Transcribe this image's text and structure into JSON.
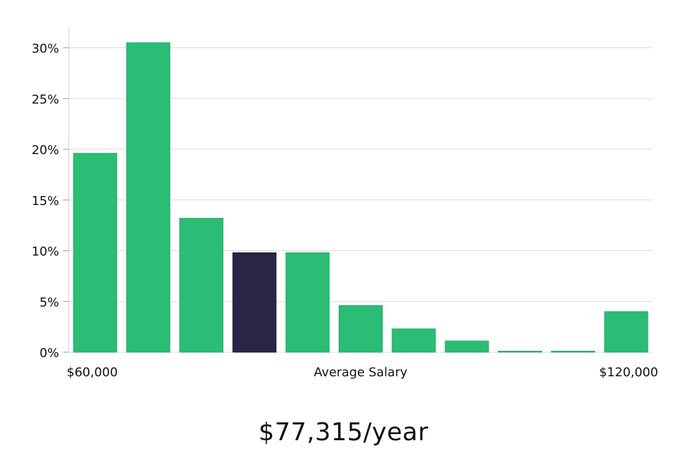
{
  "chart_data": {
    "type": "bar",
    "ylabel": "",
    "xlabel": "Average Salary",
    "ylim": [
      0,
      32
    ],
    "yticks": [
      0,
      5,
      10,
      15,
      20,
      25,
      30
    ],
    "ytick_labels": [
      "0%",
      "5%",
      "10%",
      "15%",
      "20%",
      "25%",
      "30%"
    ],
    "x_edge_labels": {
      "min": "$60,000",
      "max": "$120,000"
    },
    "values": [
      19.6,
      30.5,
      13.2,
      9.8,
      9.8,
      4.6,
      2.3,
      1.1,
      0.1,
      0.1,
      4.0
    ],
    "highlight_index": 3,
    "grid": true,
    "colors": {
      "bar": "#2bbd76",
      "highlight": "#2a2547",
      "grid": "#d9d9d9",
      "axis": "#cccccc"
    }
  },
  "summary": {
    "salary": "$77,315/year"
  }
}
